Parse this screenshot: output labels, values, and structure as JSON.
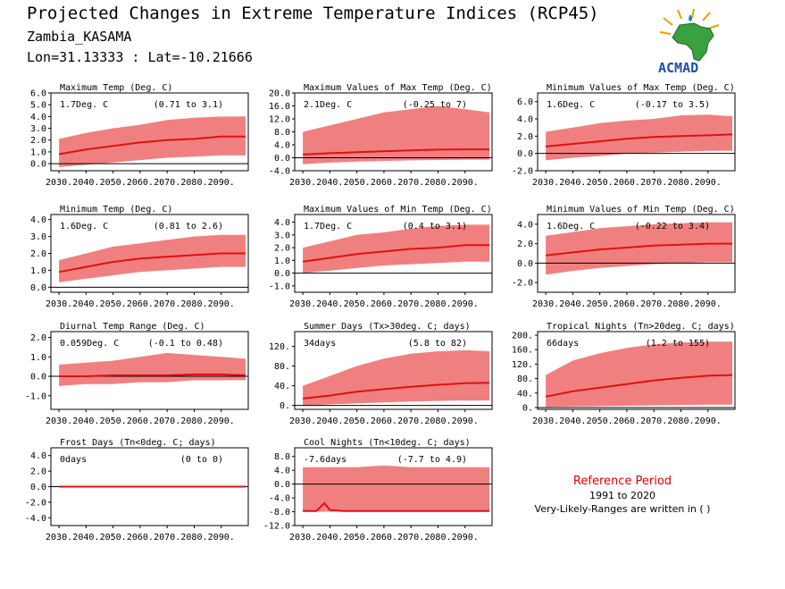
{
  "header": {
    "title": "Projected Changes in Extreme Temperature Indices (RCP45)",
    "location": "Zambia_KASAMA",
    "coords": "Lon=31.13333 : Lat=-10.21666"
  },
  "logo": {
    "name": "africa-map-icon",
    "text": "ACMAD"
  },
  "colors": {
    "band": "#f08080",
    "line": "#e01010",
    "zero": "#000000",
    "ref": "#e00000"
  },
  "reference": {
    "title": "Reference Period",
    "years": "1991 to 2020",
    "note": "Very-Likely-Ranges are written in ( )"
  },
  "chart_data": [
    {
      "type": "area",
      "title": "Maximum Temp (Deg. C)",
      "mean_label": "1.7Deg. C",
      "range_label": "(0.71 to 3.1)",
      "x": [
        2030,
        2040,
        2050,
        2060,
        2070,
        2080,
        2090,
        2099
      ],
      "median": [
        0.8,
        1.2,
        1.5,
        1.8,
        2.0,
        2.1,
        2.3,
        2.3
      ],
      "low": [
        -0.3,
        -0.1,
        0.1,
        0.3,
        0.5,
        0.6,
        0.7,
        0.7
      ],
      "high": [
        2.1,
        2.6,
        3.0,
        3.3,
        3.7,
        3.9,
        4.0,
        4.0
      ],
      "x_ticks": [
        "2030.",
        "2040.",
        "2050.",
        "2060.",
        "2070.",
        "2080.",
        "2090."
      ],
      "y_ticks": [
        "6.0",
        "5.0",
        "4.0",
        "3.0",
        "2.0",
        "1.0",
        "0.0"
      ],
      "ylim": [
        -0.6,
        6.0
      ]
    },
    {
      "type": "area",
      "title": "Maximum Values of Max Temp (Deg. C)",
      "mean_label": "2.1Deg. C",
      "range_label": "(-0.25 to 7)",
      "x": [
        2030,
        2040,
        2050,
        2060,
        2070,
        2080,
        2090,
        2099
      ],
      "median": [
        1.0,
        1.4,
        1.7,
        2.0,
        2.3,
        2.5,
        2.6,
        2.6
      ],
      "low": [
        -2.0,
        -1.5,
        -1.2,
        -1.0,
        -0.8,
        -0.7,
        -0.6,
        -0.6
      ],
      "high": [
        8.0,
        10.0,
        12.0,
        14.0,
        15.0,
        16.0,
        15.0,
        14.0
      ],
      "x_ticks": [
        "2030.",
        "2040.",
        "2050.",
        "2060.",
        "2070.",
        "2080.",
        "2090."
      ],
      "y_ticks": [
        "20.0",
        "16.0",
        "12.0",
        "8.0",
        "4.0",
        "0.0",
        "-4.0"
      ],
      "ylim": [
        -4.0,
        20.0
      ]
    },
    {
      "type": "area",
      "title": "Minimum Values of Max Temp (Deg. C)",
      "mean_label": "1.6Deg. C",
      "range_label": "(-0.17 to 3.5)",
      "x": [
        2030,
        2040,
        2050,
        2060,
        2070,
        2080,
        2090,
        2099
      ],
      "median": [
        0.8,
        1.1,
        1.4,
        1.7,
        1.9,
        2.0,
        2.1,
        2.2
      ],
      "low": [
        -0.8,
        -0.5,
        -0.3,
        0.0,
        0.1,
        0.2,
        0.3,
        0.3
      ],
      "high": [
        2.5,
        3.0,
        3.5,
        3.8,
        4.0,
        4.4,
        4.5,
        4.3
      ],
      "x_ticks": [
        "2030.",
        "2040.",
        "2050.",
        "2060.",
        "2070.",
        "2080.",
        "2090."
      ],
      "y_ticks": [
        "6.0",
        "4.0",
        "2.0",
        "0.0",
        "-2.0"
      ],
      "ylim": [
        -2.0,
        7.0
      ]
    },
    {
      "type": "area",
      "title": "Minimum Temp (Deg. C)",
      "mean_label": "1.6Deg. C",
      "range_label": "(0.81 to 2.6)",
      "x": [
        2030,
        2040,
        2050,
        2060,
        2070,
        2080,
        2090,
        2099
      ],
      "median": [
        0.9,
        1.2,
        1.5,
        1.7,
        1.8,
        1.9,
        2.0,
        2.0
      ],
      "low": [
        0.3,
        0.5,
        0.7,
        0.9,
        1.0,
        1.1,
        1.2,
        1.2
      ],
      "high": [
        1.6,
        2.0,
        2.4,
        2.6,
        2.8,
        3.0,
        3.1,
        3.1
      ],
      "x_ticks": [
        "2030.",
        "2040.",
        "2050.",
        "2060.",
        "2070.",
        "2080.",
        "2090."
      ],
      "y_ticks": [
        "4.0",
        "3.0",
        "2.0",
        "1.0",
        "0.0"
      ],
      "ylim": [
        -0.3,
        4.3
      ]
    },
    {
      "type": "area",
      "title": "Maximum Values of Min Temp (Deg. C)",
      "mean_label": "1.7Deg. C",
      "range_label": "(0.4 to 3.1)",
      "x": [
        2030,
        2040,
        2050,
        2060,
        2070,
        2080,
        2090,
        2099
      ],
      "median": [
        0.9,
        1.2,
        1.5,
        1.7,
        1.9,
        2.0,
        2.2,
        2.2
      ],
      "low": [
        0.0,
        0.2,
        0.4,
        0.6,
        0.7,
        0.8,
        0.9,
        0.9
      ],
      "high": [
        2.0,
        2.5,
        3.0,
        3.2,
        3.5,
        3.7,
        3.8,
        3.8
      ],
      "x_ticks": [
        "2030.",
        "2040.",
        "2050.",
        "2060.",
        "2070.",
        "2080.",
        "2090."
      ],
      "y_ticks": [
        "4.0",
        "3.0",
        "2.0",
        "1.0",
        "0.0",
        "-1.0"
      ],
      "ylim": [
        -1.5,
        4.6
      ]
    },
    {
      "type": "area",
      "title": "Minimum Values of Min Temp (Deg. C)",
      "mean_label": "1.6Deg. C",
      "range_label": "(-0.22 to 3.4)",
      "x": [
        2030,
        2040,
        2050,
        2060,
        2070,
        2080,
        2090,
        2099
      ],
      "median": [
        0.8,
        1.1,
        1.4,
        1.6,
        1.8,
        1.9,
        2.0,
        2.0
      ],
      "low": [
        -1.2,
        -0.8,
        -0.5,
        -0.3,
        -0.1,
        0.0,
        0.1,
        0.1
      ],
      "high": [
        2.8,
        3.2,
        3.6,
        3.8,
        4.0,
        4.1,
        4.2,
        4.2
      ],
      "x_ticks": [
        "2030.",
        "2040.",
        "2050.",
        "2060.",
        "2070.",
        "2080.",
        "2090."
      ],
      "y_ticks": [
        "4.0",
        "2.0",
        "0.0",
        "-2.0"
      ],
      "ylim": [
        -3.0,
        5.0
      ]
    },
    {
      "type": "area",
      "title": "Diurnal Temp Range (Deg. C)",
      "mean_label": "0.059Deg. C",
      "range_label": "(-0.1 to 0.48)",
      "x": [
        2030,
        2040,
        2050,
        2060,
        2070,
        2080,
        2090,
        2099
      ],
      "median": [
        0.0,
        0.0,
        0.05,
        0.05,
        0.05,
        0.1,
        0.1,
        0.05
      ],
      "low": [
        -0.5,
        -0.4,
        -0.4,
        -0.3,
        -0.3,
        -0.2,
        -0.2,
        -0.2
      ],
      "high": [
        0.6,
        0.7,
        0.8,
        1.0,
        1.2,
        1.1,
        1.0,
        0.9
      ],
      "x_ticks": [
        "2030.",
        "2040.",
        "2050.",
        "2060.",
        "2070.",
        "2080.",
        "2090."
      ],
      "y_ticks": [
        "2.0",
        "1.0",
        "0.0",
        "-1.0"
      ],
      "ylim": [
        -1.7,
        2.3
      ]
    },
    {
      "type": "area",
      "title": "Summer Days (Tx>30deg. C; days)",
      "mean_label": "34days",
      "range_label": "(5.8 to 82)",
      "x": [
        2030,
        2040,
        2050,
        2060,
        2070,
        2080,
        2090,
        2099
      ],
      "median": [
        14,
        20,
        28,
        33,
        38,
        42,
        45,
        46
      ],
      "low": [
        0,
        2,
        4,
        6,
        8,
        9,
        10,
        10
      ],
      "high": [
        40,
        60,
        80,
        95,
        105,
        110,
        112,
        110
      ],
      "x_ticks": [
        "2030.",
        "2040.",
        "2050.",
        "2060.",
        "2070.",
        "2080.",
        "2090."
      ],
      "y_ticks": [
        "120.",
        "80.",
        "40.",
        "0."
      ],
      "ylim": [
        -8,
        150
      ]
    },
    {
      "type": "area",
      "title": "Tropical Nights (Tn>20deg. C; days)",
      "mean_label": "66days",
      "range_label": "(1.2 to 155)",
      "x": [
        2030,
        2040,
        2050,
        2060,
        2070,
        2080,
        2090,
        2099
      ],
      "median": [
        30,
        45,
        55,
        65,
        75,
        82,
        88,
        90
      ],
      "low": [
        2,
        3,
        4,
        5,
        6,
        7,
        8,
        8
      ],
      "high": [
        90,
        130,
        150,
        165,
        175,
        180,
        182,
        182
      ],
      "x_ticks": [
        "2030.",
        "2040.",
        "2050.",
        "2060.",
        "2070.",
        "2080.",
        "2090."
      ],
      "y_ticks": [
        "200.",
        "160.",
        "120.",
        "80.",
        "40.",
        "0."
      ],
      "ylim": [
        -5,
        210
      ]
    },
    {
      "type": "area",
      "title": "Frost Days (Tn<0deg. C; days)",
      "mean_label": "0days",
      "range_label": "(0 to 0)",
      "x": [
        2030,
        2040,
        2050,
        2060,
        2070,
        2080,
        2090,
        2099
      ],
      "median": [
        0,
        0,
        0,
        0,
        0,
        0,
        0,
        0
      ],
      "low": [
        0,
        0,
        0,
        0,
        0,
        0,
        0,
        0
      ],
      "high": [
        0,
        0,
        0,
        0,
        0,
        0,
        0,
        0
      ],
      "x_ticks": [
        "2030.",
        "2040.",
        "2050.",
        "2060.",
        "2070.",
        "2080.",
        "2090."
      ],
      "y_ticks": [
        "4.0",
        "2.0",
        "0.0",
        "-2.0",
        "-4.0"
      ],
      "ylim": [
        -5.0,
        5.0
      ]
    },
    {
      "type": "area",
      "title": "Cool Nights (Tn<10deg. C; days)",
      "mean_label": "-7.6days",
      "range_label": "(-7.7 to 4.9)",
      "x": [
        2030,
        2035,
        2038,
        2040,
        2045,
        2050,
        2060,
        2070,
        2080,
        2090,
        2099
      ],
      "median": [
        -7.8,
        -7.8,
        -5.5,
        -7.5,
        -7.8,
        -7.8,
        -7.8,
        -7.8,
        -7.8,
        -7.8,
        -7.8
      ],
      "low": [
        -8.0,
        -8.0,
        -8.0,
        -8.0,
        -8.0,
        -8.0,
        -8.0,
        -8.0,
        -8.0,
        -8.0,
        -8.0
      ],
      "high": [
        4.9,
        4.9,
        4.9,
        4.9,
        4.9,
        4.9,
        5.4,
        4.9,
        4.9,
        4.9,
        4.9
      ],
      "x_ticks": [
        "2030.",
        "2040.",
        "2050.",
        "2060.",
        "2070.",
        "2080.",
        "2090."
      ],
      "y_ticks": [
        "8.0",
        "4.0",
        "0.0",
        "-4.0",
        "-8.0",
        "-12.0"
      ],
      "ylim": [
        -12.0,
        10.5
      ]
    }
  ]
}
